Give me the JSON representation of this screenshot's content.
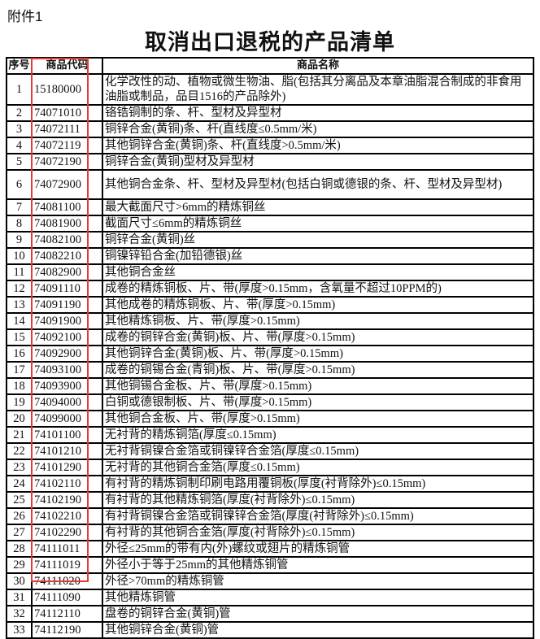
{
  "attachment_label": "附件1",
  "title": "取消出口退税的产品清单",
  "highlight_color": "#e53935",
  "table": {
    "headers": [
      "序号",
      "商品代码",
      "商品名称"
    ],
    "rows": [
      {
        "no": "1",
        "code": "15180000",
        "name": "化学改性的动、植物或微生物油、脂(包括其分离品及本章油脂混合制成的非食用油脂或制品，品目1516的产品除外)"
      },
      {
        "no": "2",
        "code": "74071010",
        "name": "铬锆铜制的条、杆、型材及异型材"
      },
      {
        "no": "3",
        "code": "74072111",
        "name": "铜锌合金(黄铜)条、杆(直线度≤0.5mm/米)"
      },
      {
        "no": "4",
        "code": "74072119",
        "name": "其他铜锌合金(黄铜)条、杆(直线度>0.5mm/米)"
      },
      {
        "no": "5",
        "code": "74072190",
        "name": "铜锌合金(黄铜)型材及异型材"
      },
      {
        "no": "6",
        "code": "74072900",
        "name": "其他铜合金条、杆、型材及异型材(包括白铜或德银的条、杆、型材及异型材)"
      },
      {
        "no": "7",
        "code": "74081100",
        "name": "最大截面尺寸>6mm的精炼铜丝"
      },
      {
        "no": "8",
        "code": "74081900",
        "name": "截面尺寸≤6mm的精炼铜丝"
      },
      {
        "no": "9",
        "code": "74082100",
        "name": "铜锌合金(黄铜)丝"
      },
      {
        "no": "10",
        "code": "74082210",
        "name": "铜镍锌铅合金(加铅德银)丝"
      },
      {
        "no": "11",
        "code": "74082900",
        "name": "其他铜合金丝"
      },
      {
        "no": "12",
        "code": "74091110",
        "name": "成卷的精炼铜板、片、带(厚度>0.15mm，含氧量不超过10PPM的)"
      },
      {
        "no": "13",
        "code": "74091190",
        "name": "其他成卷的精炼铜板、片、带(厚度>0.15mm)"
      },
      {
        "no": "14",
        "code": "74091900",
        "name": "其他精炼铜板、片、带(厚度>0.15mm)"
      },
      {
        "no": "15",
        "code": "74092100",
        "name": "成卷的铜锌合金(黄铜)板、片、带(厚度>0.15mm)"
      },
      {
        "no": "16",
        "code": "74092900",
        "name": "其他铜锌合金(黄铜)板、片、带(厚度>0.15mm)"
      },
      {
        "no": "17",
        "code": "74093100",
        "name": "成卷的铜锡合金(青铜)板、片、带(厚度>0.15mm)"
      },
      {
        "no": "18",
        "code": "74093900",
        "name": "其他铜锡合金板、片、带(厚度>0.15mm)"
      },
      {
        "no": "19",
        "code": "74094000",
        "name": "白铜或德银制板、片、带(厚度>0.15mm)"
      },
      {
        "no": "20",
        "code": "74099000",
        "name": "其他铜合金板、片、带(厚度>0.15mm)"
      },
      {
        "no": "21",
        "code": "74101100",
        "name": "无衬背的精炼铜箔(厚度≤0.15mm)"
      },
      {
        "no": "22",
        "code": "74101210",
        "name": "无衬背铜镍合金箔或铜镍锌合金箔(厚度≤0.15mm)"
      },
      {
        "no": "23",
        "code": "74101290",
        "name": "无衬背的其他铜合金箔(厚度≤0.15mm)"
      },
      {
        "no": "24",
        "code": "74102110",
        "name": "有衬背的精炼铜制印刷电路用覆铜板(厚度(衬背除外)≤0.15mm)"
      },
      {
        "no": "25",
        "code": "74102190",
        "name": "有衬背的其他精炼铜箔(厚度(衬背除外)≤0.15mm)"
      },
      {
        "no": "26",
        "code": "74102210",
        "name": "有衬背铜镍合金箔或铜镍锌合金箔(厚度(衬背除外)≤0.15mm)"
      },
      {
        "no": "27",
        "code": "74102290",
        "name": "有衬背的其他铜合金箔(厚度(衬背除外)≤0.15mm)"
      },
      {
        "no": "28",
        "code": "74111011",
        "name": "外径≤25mm的带有内(外)螺纹或翅片的精炼铜管"
      },
      {
        "no": "29",
        "code": "74111019",
        "name": "外径小于等于25mm的其他精炼铜管"
      },
      {
        "no": "30",
        "code": "74111020",
        "name": "外径>70mm的精炼铜管"
      },
      {
        "no": "31",
        "code": "74111090",
        "name": "其他精炼铜管"
      },
      {
        "no": "32",
        "code": "74112110",
        "name": "盘卷的铜锌合金(黄铜)管"
      },
      {
        "no": "33",
        "code": "74112190",
        "name": "其他铜锌合金(黄铜)管"
      }
    ]
  }
}
